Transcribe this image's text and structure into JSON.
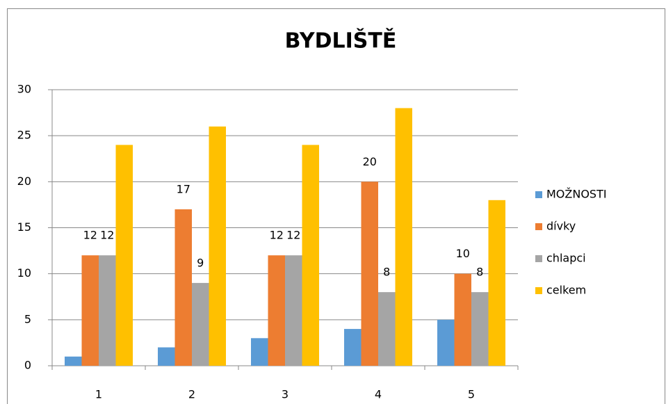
{
  "chart_data": {
    "type": "bar",
    "title": "BYDLIŠTĚ",
    "categories": [
      "1",
      "2",
      "3",
      "4",
      "5"
    ],
    "series": [
      {
        "name": "MOŽNOSTI",
        "color": "#5b9bd5",
        "values": [
          1,
          2,
          3,
          4,
          5
        ],
        "data_labels": false
      },
      {
        "name": "dívky",
        "color": "#ed7d31",
        "values": [
          12,
          17,
          12,
          20,
          10
        ],
        "data_labels": true
      },
      {
        "name": "chlapci",
        "color": "#a5a5a5",
        "values": [
          12,
          9,
          12,
          8,
          8
        ],
        "data_labels": true
      },
      {
        "name": "celkem",
        "color": "#ffc000",
        "values": [
          24,
          26,
          24,
          28,
          18
        ],
        "data_labels": false
      }
    ],
    "ylim": [
      0,
      30
    ],
    "yticks": [
      0,
      5,
      10,
      15,
      20,
      25,
      30
    ],
    "grid": true,
    "legend": "right"
  }
}
